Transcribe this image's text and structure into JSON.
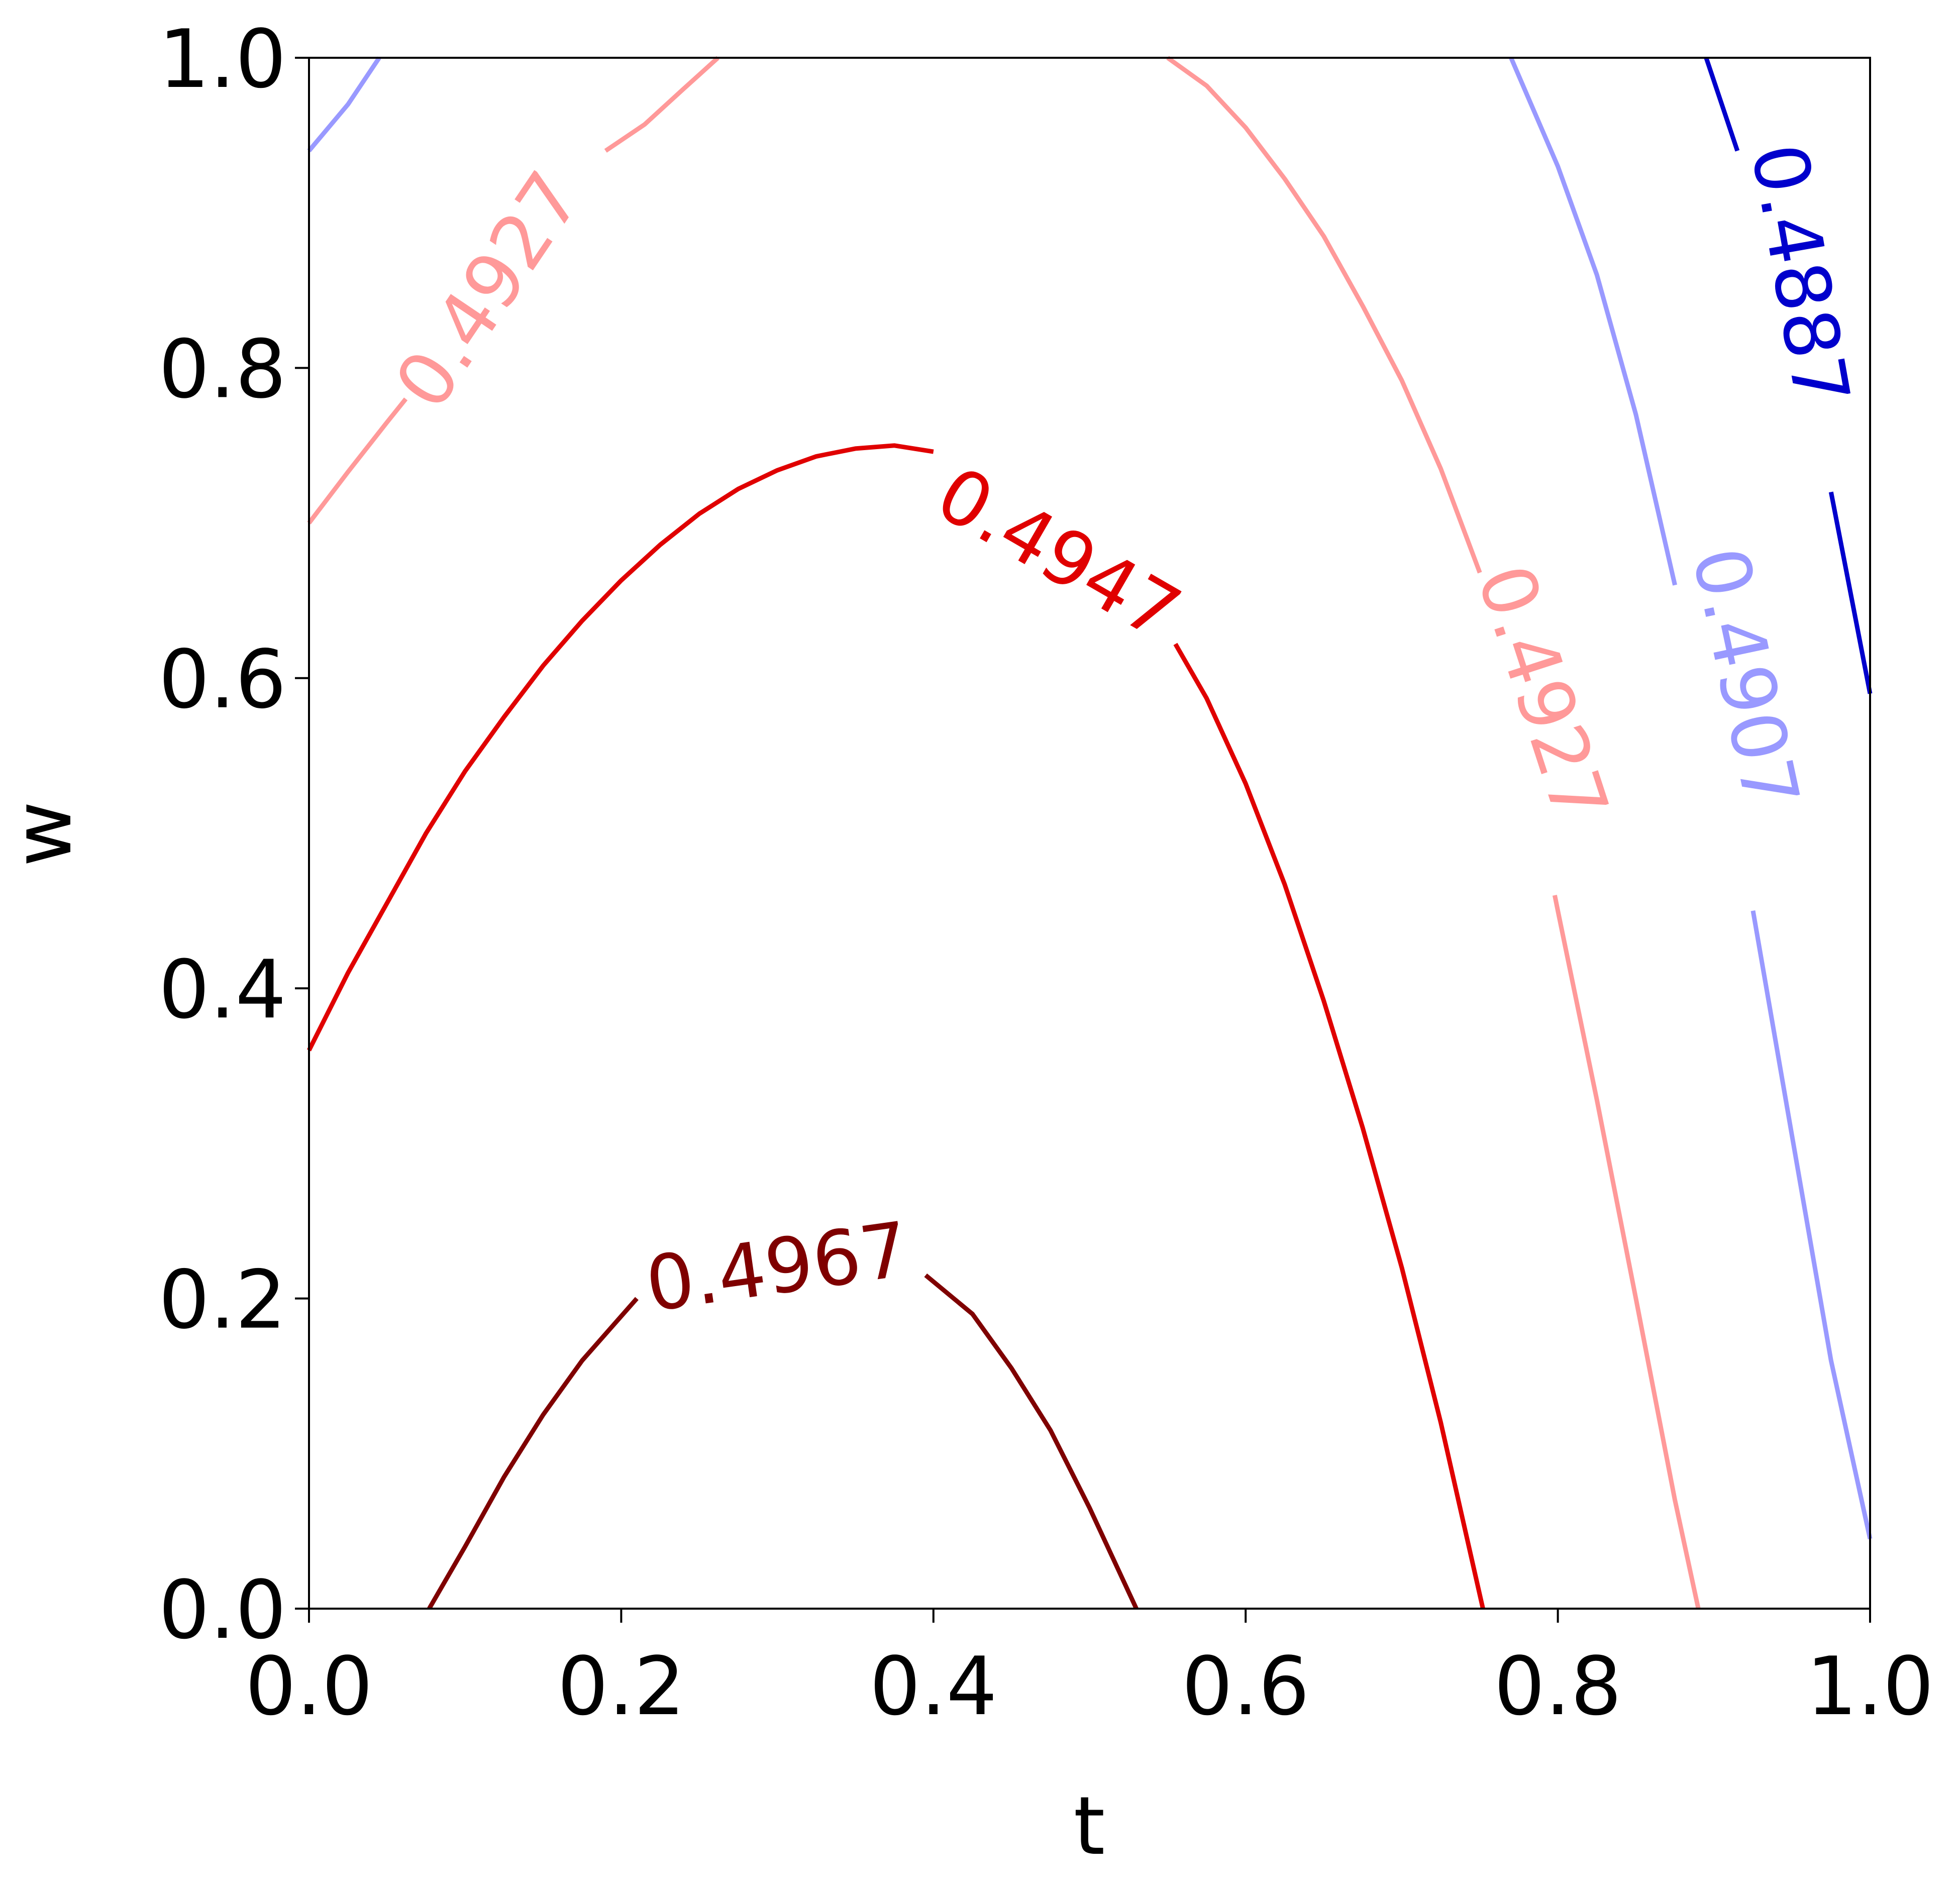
{
  "chart_data": {
    "type": "contour",
    "xlabel": "t",
    "ylabel": "w",
    "xlim": [
      0.0,
      1.0
    ],
    "ylim": [
      0.0,
      1.0
    ],
    "xticks": [
      "0.0",
      "0.2",
      "0.4",
      "0.6",
      "0.8",
      "1.0"
    ],
    "yticks": [
      "0.0",
      "0.2",
      "0.4",
      "0.6",
      "0.8",
      "1.0"
    ],
    "grid": false,
    "levels": [
      {
        "name": "0.4967",
        "color": "#7f0000",
        "label_text": "0.4967",
        "label_at": {
          "t": 0.3,
          "w": 0.22,
          "angle": -8
        },
        "segments": [
          [
            [
              0.077,
              0.0
            ],
            [
              0.1,
              0.04
            ],
            [
              0.125,
              0.085
            ],
            [
              0.15,
              0.125
            ],
            [
              0.175,
              0.16
            ],
            [
              0.21,
              0.2
            ]
          ],
          [
            [
              0.395,
              0.215
            ],
            [
              0.425,
              0.19
            ],
            [
              0.45,
              0.155
            ],
            [
              0.475,
              0.115
            ],
            [
              0.5,
              0.065
            ],
            [
              0.53,
              0.0
            ]
          ]
        ]
      },
      {
        "name": "0.4947",
        "color": "#e00000",
        "label_text": "0.4947",
        "label_at": {
          "t": 0.48,
          "w": 0.68,
          "angle": 30
        },
        "segments": [
          [
            [
              0.0,
              0.36
            ],
            [
              0.025,
              0.41
            ],
            [
              0.05,
              0.455
            ],
            [
              0.075,
              0.5
            ],
            [
              0.1,
              0.54
            ],
            [
              0.125,
              0.575
            ],
            [
              0.15,
              0.608
            ],
            [
              0.175,
              0.637
            ],
            [
              0.2,
              0.663
            ],
            [
              0.225,
              0.686
            ],
            [
              0.25,
              0.706
            ],
            [
              0.275,
              0.722
            ],
            [
              0.3,
              0.734
            ],
            [
              0.325,
              0.743
            ],
            [
              0.35,
              0.748
            ],
            [
              0.375,
              0.75
            ],
            [
              0.4,
              0.746
            ]
          ],
          [
            [
              0.555,
              0.622
            ],
            [
              0.575,
              0.587
            ],
            [
              0.6,
              0.532
            ],
            [
              0.625,
              0.467
            ],
            [
              0.65,
              0.392
            ],
            [
              0.675,
              0.31
            ],
            [
              0.7,
              0.22
            ],
            [
              0.725,
              0.12
            ],
            [
              0.752,
              0.0
            ]
          ]
        ]
      },
      {
        "name": "0.4927",
        "color": "#ff9999",
        "label_text": "0.4927",
        "label_at": [
          {
            "t": 0.115,
            "w": 0.85,
            "angle": -56
          },
          {
            "t": 0.79,
            "w": 0.59,
            "angle": 72
          }
        ],
        "segments": [
          [
            [
              0.0,
              0.7
            ],
            [
              0.025,
              0.733
            ],
            [
              0.05,
              0.765
            ],
            [
              0.062,
              0.78
            ]
          ],
          [
            [
              0.19,
              0.94
            ],
            [
              0.215,
              0.957
            ],
            [
              0.24,
              0.98
            ],
            [
              0.262,
              1.0
            ]
          ],
          [
            [
              0.55,
              1.0
            ],
            [
              0.575,
              0.982
            ],
            [
              0.6,
              0.955
            ],
            [
              0.625,
              0.922
            ],
            [
              0.65,
              0.885
            ],
            [
              0.675,
              0.84
            ],
            [
              0.7,
              0.792
            ],
            [
              0.725,
              0.735
            ],
            [
              0.75,
              0.668
            ]
          ],
          [
            [
              0.798,
              0.46
            ],
            [
              0.8,
              0.45
            ],
            [
              0.825,
              0.328
            ],
            [
              0.85,
              0.2
            ],
            [
              0.875,
              0.07
            ],
            [
              0.89,
              0.0
            ]
          ]
        ]
      },
      {
        "name": "0.4907",
        "color": "#9999ff",
        "label_text": "0.4907",
        "label_at": {
          "t": 0.92,
          "w": 0.6,
          "angle": 78
        },
        "segments": [
          [
            [
              0.0,
              0.94
            ],
            [
              0.025,
              0.97
            ],
            [
              0.045,
              1.0
            ]
          ],
          [
            [
              0.77,
              1.0
            ],
            [
              0.8,
              0.93
            ],
            [
              0.825,
              0.86
            ],
            [
              0.85,
              0.77
            ],
            [
              0.875,
              0.66
            ]
          ],
          [
            [
              0.925,
              0.45
            ],
            [
              0.95,
              0.305
            ],
            [
              0.975,
              0.16
            ],
            [
              1.0,
              0.045
            ]
          ]
        ]
      },
      {
        "name": "0.4887",
        "color": "#0000cc",
        "label_text": "0.4887",
        "label_at": {
          "t": 0.955,
          "w": 0.86,
          "angle": 80
        },
        "segments": [
          [
            [
              0.895,
              1.0
            ],
            [
              0.915,
              0.94
            ]
          ],
          [
            [
              0.975,
              0.72
            ],
            [
              1.0,
              0.59
            ]
          ]
        ]
      }
    ]
  }
}
